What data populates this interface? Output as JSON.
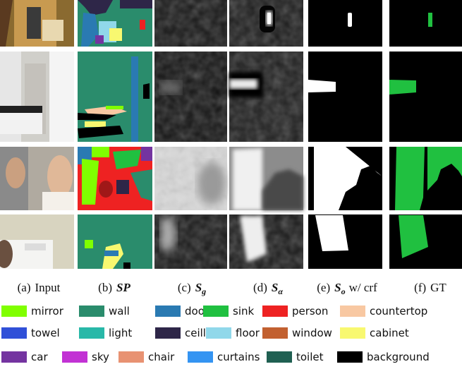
{
  "captions": [
    {
      "label": "(a)",
      "text": "Input"
    },
    {
      "label": "(b)",
      "symbol": "SP"
    },
    {
      "label": "(c)",
      "symbol": "S",
      "subscript": "g"
    },
    {
      "label": "(d)",
      "symbol": "S",
      "subscript": "α"
    },
    {
      "label": "(e)",
      "symbol": "S",
      "subscript": "o",
      "text": "w/ crf"
    },
    {
      "label": "(f)",
      "text": "GT"
    }
  ],
  "legend": [
    [
      {
        "name": "mirror",
        "color": "#80ff00"
      },
      {
        "name": "wall",
        "color": "#2a8c6c"
      },
      {
        "name": "door",
        "color": "#2a7ab2"
      },
      {
        "name": "sink",
        "color": "#20c040"
      },
      {
        "name": "person",
        "color": "#ee2222"
      },
      {
        "name": "countertop",
        "color": "#f8c8a2"
      }
    ],
    [
      {
        "name": "towel",
        "color": "#3050d8"
      },
      {
        "name": "light",
        "color": "#28b8a8"
      },
      {
        "name": "ceilling",
        "color": "#2e2648"
      },
      {
        "name": "floor",
        "color": "#90d8ea"
      },
      {
        "name": "window",
        "color": "#c26030"
      },
      {
        "name": "cabinet",
        "color": "#f8f870"
      }
    ],
    [
      {
        "name": "car",
        "color": "#7434a0"
      },
      {
        "name": "sky",
        "color": "#c232d4"
      },
      {
        "name": "chair",
        "color": "#e89272"
      },
      {
        "name": "curtains",
        "color": "#3494f2"
      },
      {
        "name": "toilet",
        "color": "#206052"
      },
      {
        "name": "background",
        "color": "#000000"
      }
    ]
  ]
}
